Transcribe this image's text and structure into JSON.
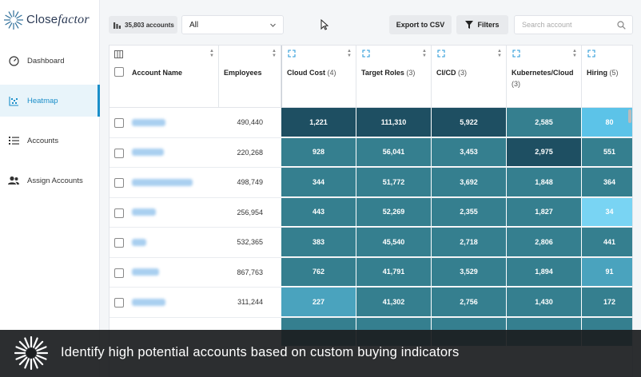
{
  "app": {
    "brand_part1": "Close",
    "brand_part2": "factor"
  },
  "sidebar": {
    "items": [
      {
        "label": "Dashboard",
        "icon": "gauge-icon",
        "active": false
      },
      {
        "label": "Heatmap",
        "icon": "heatmap-icon",
        "active": true
      },
      {
        "label": "Accounts",
        "icon": "list-icon",
        "active": false
      },
      {
        "label": "Assign Accounts",
        "icon": "users-icon",
        "active": false
      }
    ]
  },
  "toolbar": {
    "accounts_count": "35,803 accounts",
    "filter_value": "All",
    "export_label": "Export to CSV",
    "filters_label": "Filters",
    "search_placeholder": "Search account"
  },
  "table": {
    "columns": [
      {
        "name": "Account Name",
        "count": ""
      },
      {
        "name": "Employees",
        "count": ""
      },
      {
        "name": "Cloud Cost",
        "count": "(4)"
      },
      {
        "name": "Target Roles",
        "count": "(3)"
      },
      {
        "name": "CI/CD",
        "count": "(3)"
      },
      {
        "name": "Kubernetes/Cloud",
        "count": "(3)"
      },
      {
        "name": "Hiring",
        "count": "(5)"
      }
    ],
    "rows": [
      {
        "employees": "490,440",
        "cloud": "1,221",
        "roles": "111,310",
        "cicd": "5,922",
        "k8s": "2,585",
        "hiring": "80"
      },
      {
        "employees": "220,268",
        "cloud": "928",
        "roles": "56,041",
        "cicd": "3,453",
        "k8s": "2,975",
        "hiring": "551"
      },
      {
        "employees": "498,749",
        "cloud": "344",
        "roles": "51,772",
        "cicd": "3,692",
        "k8s": "1,848",
        "hiring": "364"
      },
      {
        "employees": "256,954",
        "cloud": "443",
        "roles": "52,269",
        "cicd": "2,355",
        "k8s": "1,827",
        "hiring": "34"
      },
      {
        "employees": "532,365",
        "cloud": "383",
        "roles": "45,540",
        "cicd": "2,718",
        "k8s": "2,806",
        "hiring": "441"
      },
      {
        "employees": "867,763",
        "cloud": "762",
        "roles": "41,791",
        "cicd": "3,529",
        "k8s": "1,894",
        "hiring": "91"
      },
      {
        "employees": "311,244",
        "cloud": "227",
        "roles": "41,302",
        "cicd": "2,756",
        "k8s": "1,430",
        "hiring": "172"
      }
    ],
    "heat_colors": {
      "darkest": "#1e4f62",
      "dark": "#2a6a7c",
      "mid": "#357f8f",
      "light": "#4aa3be",
      "lighter": "#5cc3e8",
      "lightest": "#79d4f3"
    }
  },
  "banner": {
    "text": "Identify high potential accounts based on custom buying indicators"
  }
}
